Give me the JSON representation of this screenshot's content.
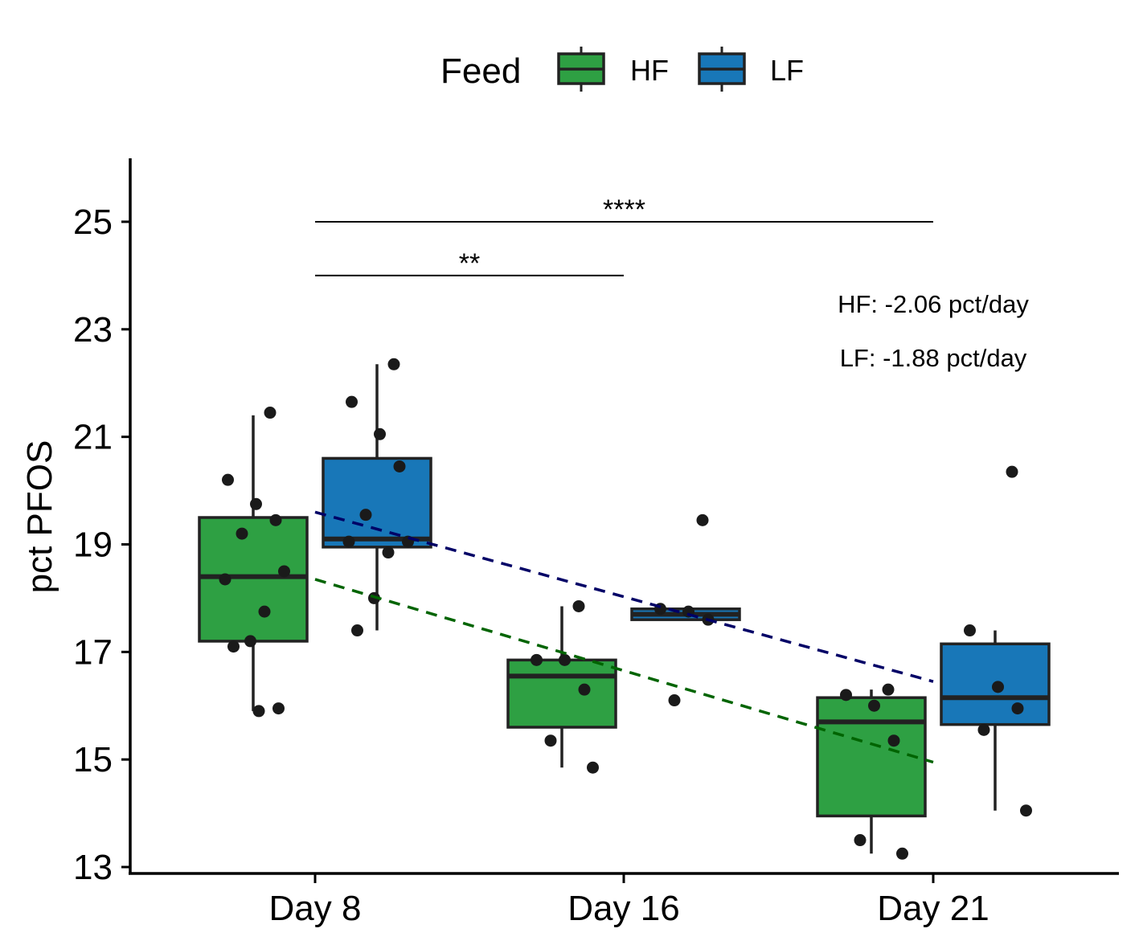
{
  "chart_data": {
    "type": "box",
    "ylabel": "pct PFOS",
    "xlabel": "",
    "ylim": [
      13,
      26
    ],
    "y_ticks": [
      13,
      15,
      17,
      19,
      21,
      23,
      25
    ],
    "categories": [
      "Day 8",
      "Day 16",
      "Day 21"
    ],
    "legend": {
      "title": "Feed",
      "position": "top"
    },
    "series": [
      {
        "name": "HF",
        "color": "#2ea043",
        "boxes": [
          {
            "category": "Day 8",
            "min": 15.9,
            "q1": 17.2,
            "median": 18.4,
            "q3": 19.5,
            "max": 21.4
          },
          {
            "category": "Day 16",
            "min": 14.85,
            "q1": 15.6,
            "median": 16.55,
            "q3": 16.85,
            "max": 17.85
          },
          {
            "category": "Day 21",
            "min": 13.25,
            "q1": 13.95,
            "median": 15.7,
            "q3": 16.15,
            "max": 16.3
          }
        ],
        "points": [
          {
            "category": "Day 8",
            "y": [
              21.45,
              20.2,
              19.75,
              19.45,
              19.2,
              18.5,
              18.35,
              17.75,
              17.2,
              17.1,
              15.95,
              15.9
            ]
          },
          {
            "category": "Day 16",
            "y": [
              17.85,
              16.85,
              16.85,
              16.3,
              15.35,
              14.85
            ]
          },
          {
            "category": "Day 21",
            "y": [
              16.3,
              16.2,
              16.0,
              15.35,
              13.5,
              13.25
            ]
          }
        ],
        "trend": {
          "from": [
            "Day 8",
            18.35
          ],
          "to": [
            "Day 21",
            14.95
          ],
          "color": "#006400"
        }
      },
      {
        "name": "LF",
        "color": "#1877b8",
        "boxes": [
          {
            "category": "Day 8",
            "min": 17.4,
            "q1": 18.95,
            "median": 19.1,
            "q3": 20.6,
            "max": 22.35
          },
          {
            "category": "Day 16",
            "min": 17.6,
            "q1": 17.6,
            "median": 17.7,
            "q3": 17.8,
            "max": 17.8
          },
          {
            "category": "Day 21",
            "min": 14.05,
            "q1": 15.65,
            "median": 16.15,
            "q3": 17.15,
            "max": 17.4
          }
        ],
        "points": [
          {
            "category": "Day 8",
            "y": [
              22.35,
              21.65,
              21.05,
              20.45,
              19.55,
              19.05,
              19.05,
              18.85,
              18.0,
              17.4
            ]
          },
          {
            "category": "Day 16",
            "y": [
              19.45,
              17.8,
              17.75,
              17.6,
              16.1
            ]
          },
          {
            "category": "Day 21",
            "y": [
              20.35,
              17.4,
              16.35,
              15.95,
              15.55,
              14.05
            ]
          }
        ],
        "trend": {
          "from": [
            "Day 8",
            19.6
          ],
          "to": [
            "Day 21",
            16.45
          ],
          "color": "#000066"
        }
      }
    ],
    "significance": [
      {
        "from": "Day 8",
        "to": "Day 16",
        "y": 24,
        "label": "**"
      },
      {
        "from": "Day 8",
        "to": "Day 21",
        "y": 25,
        "label": "****"
      }
    ],
    "annotations": [
      {
        "text": "HF: -2.06 pct/day"
      },
      {
        "text": "LF: -1.88 pct/day"
      }
    ]
  }
}
